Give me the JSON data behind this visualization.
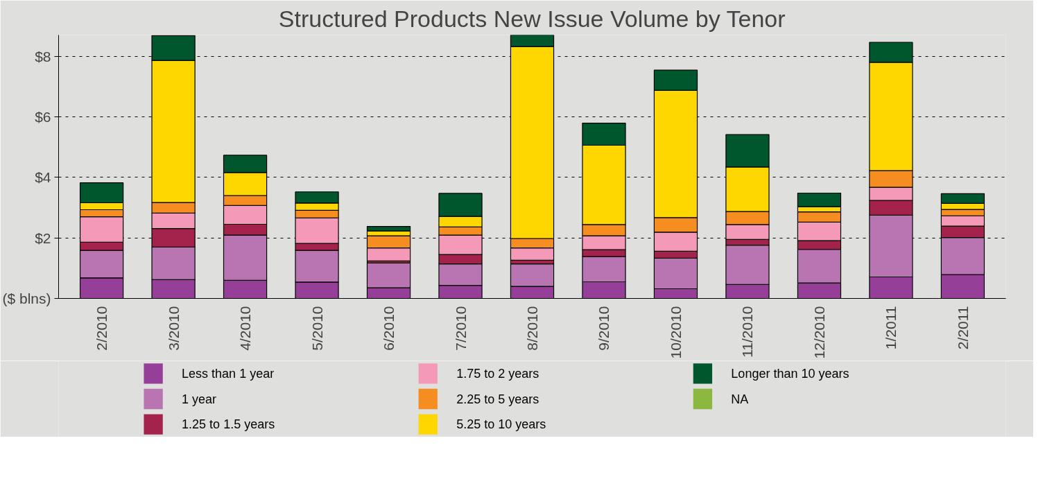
{
  "chart_data": {
    "type": "bar",
    "stacked": true,
    "title": "Structured Products New Issue Volume by Tenor",
    "categories": [
      "2/2010",
      "3/2010",
      "4/2010",
      "5/2010",
      "6/2010",
      "7/2010",
      "8/2010",
      "9/2010",
      "10/2010",
      "11/2010",
      "12/2010",
      "1/2011",
      "2/2011"
    ],
    "series": [
      {
        "name": "Less than 1 year",
        "color": "#953f99",
        "values": [
          0.68,
          0.62,
          0.6,
          0.54,
          0.35,
          0.43,
          0.4,
          0.55,
          0.32,
          0.46,
          0.51,
          0.71,
          0.79
        ]
      },
      {
        "name": "1 year",
        "color": "#b875b1",
        "values": [
          0.91,
          1.08,
          1.49,
          1.05,
          0.82,
          0.71,
          0.74,
          0.83,
          1.01,
          1.3,
          1.11,
          2.04,
          1.22
        ]
      },
      {
        "name": "1.25 to 1.5 years",
        "color": "#a4234c",
        "values": [
          0.27,
          0.61,
          0.36,
          0.23,
          0.07,
          0.31,
          0.12,
          0.23,
          0.23,
          0.19,
          0.29,
          0.49,
          0.38
        ]
      },
      {
        "name": "1.75 to 2 years",
        "color": "#f49ab8",
        "values": [
          0.84,
          0.51,
          0.62,
          0.84,
          0.43,
          0.64,
          0.41,
          0.46,
          0.63,
          0.49,
          0.61,
          0.43,
          0.34
        ]
      },
      {
        "name": "2.25 to 5 years",
        "color": "#f58d21",
        "values": [
          0.23,
          0.35,
          0.33,
          0.25,
          0.4,
          0.27,
          0.31,
          0.37,
          0.48,
          0.43,
          0.34,
          0.55,
          0.21
        ]
      },
      {
        "name": "5.25 to 10 years",
        "color": "#fed700",
        "values": [
          0.23,
          4.69,
          0.76,
          0.24,
          0.16,
          0.35,
          6.34,
          2.62,
          4.2,
          1.47,
          0.17,
          3.58,
          0.2
        ]
      },
      {
        "name": "Longer than 10 years",
        "color": "#00572d",
        "values": [
          0.66,
          0.82,
          0.57,
          0.37,
          0.15,
          0.76,
          0.4,
          0.73,
          0.67,
          1.07,
          0.45,
          0.66,
          0.32
        ]
      },
      {
        "name": "NA",
        "color": "#8db83f",
        "values": [
          null,
          null,
          null,
          null,
          null,
          null,
          null,
          null,
          null,
          null,
          null,
          null,
          null
        ]
      }
    ],
    "ylim": [
      0,
      8.7
    ],
    "yticks": [
      {
        "value": 0,
        "label": "($ blns)"
      },
      {
        "value": 2,
        "label": "$2"
      },
      {
        "value": 4,
        "label": "$4"
      },
      {
        "value": 6,
        "label": "$6"
      },
      {
        "value": 8,
        "label": "$8"
      }
    ],
    "grid": "y",
    "legend": "bottom"
  }
}
